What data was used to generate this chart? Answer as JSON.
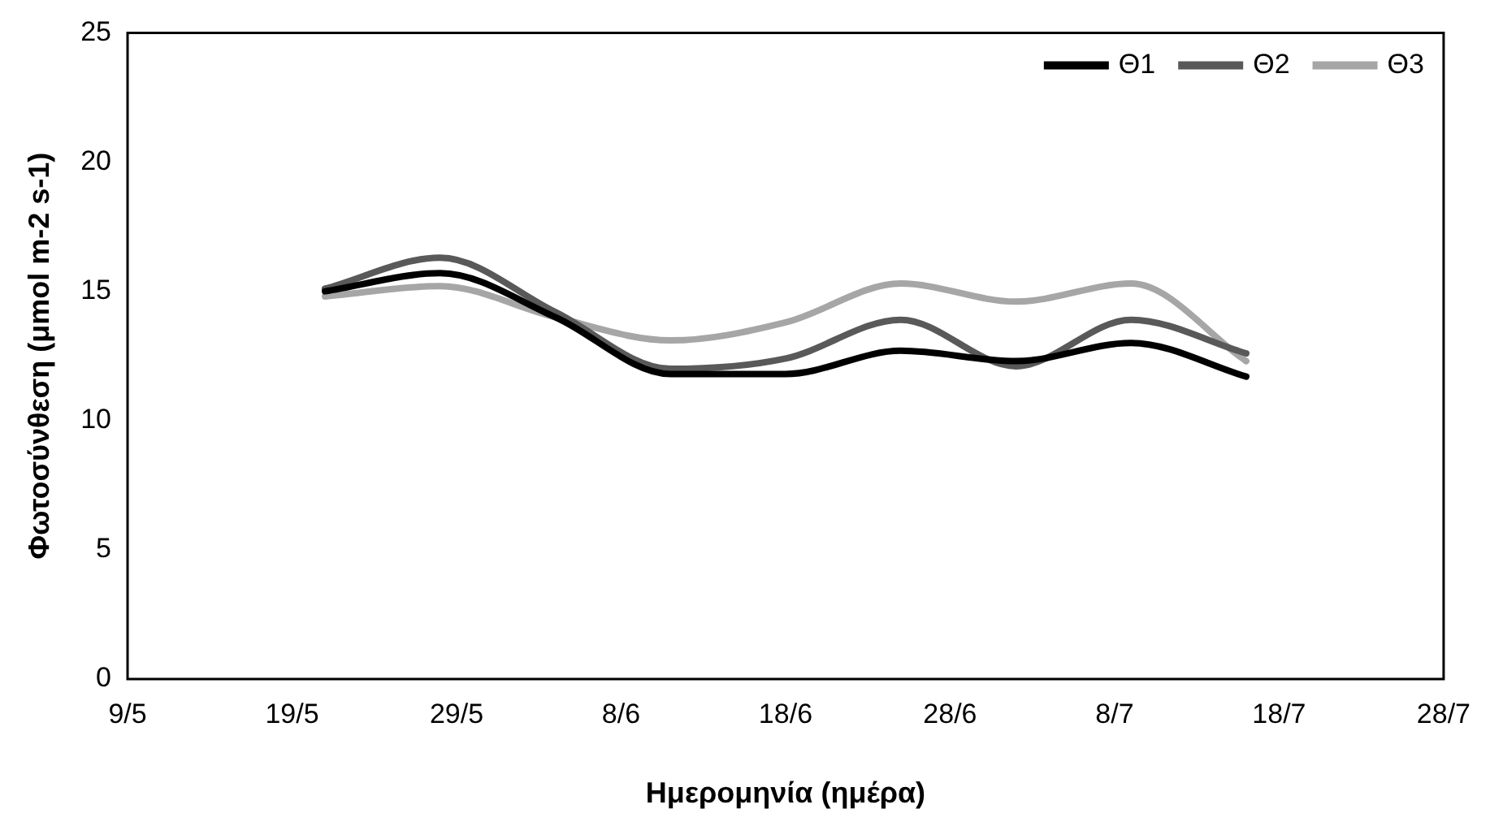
{
  "chart_data": {
    "type": "line",
    "xlabel": "Ημερομηνία (ημέρα)",
    "ylabel": "Φωτοσύνθεση (μmol m-2 s-1)",
    "x": [
      "--05-21",
      "--05-28",
      "--06-04",
      "--06-11",
      "--06-18",
      "--06-25",
      "--07-02",
      "--07-09",
      "--07-16"
    ],
    "series": [
      {
        "name": "Θ1",
        "color": "#000000",
        "values": [
          15.0,
          15.7,
          14.0,
          11.8,
          11.8,
          12.7,
          12.3,
          13.0,
          11.7
        ]
      },
      {
        "name": "Θ2",
        "color": "#595959",
        "values": [
          15.1,
          16.3,
          14.2,
          12.0,
          12.4,
          13.9,
          12.1,
          13.9,
          12.6
        ]
      },
      {
        "name": "Θ3",
        "color": "#a6a6a6",
        "values": [
          14.8,
          15.2,
          14.0,
          13.1,
          13.8,
          15.3,
          14.6,
          15.3,
          12.3
        ]
      }
    ],
    "xlim": [
      "--05-09",
      "--07-28"
    ],
    "xticks": [
      {
        "value": "--05-09",
        "label": "9/5"
      },
      {
        "value": "--05-19",
        "label": "19/5"
      },
      {
        "value": "--05-29",
        "label": "29/5"
      },
      {
        "value": "--06-08",
        "label": "8/6"
      },
      {
        "value": "--06-18",
        "label": "18/6"
      },
      {
        "value": "--06-28",
        "label": "28/6"
      },
      {
        "value": "--07-08",
        "label": "8/7"
      },
      {
        "value": "--07-18",
        "label": "18/7"
      },
      {
        "value": "--07-28",
        "label": "28/7"
      }
    ],
    "ylim": [
      0,
      25
    ],
    "yticks": [
      0,
      5,
      10,
      15,
      20,
      25
    ],
    "grid": false,
    "legend": "top right",
    "marker": "none",
    "line_style": "solid"
  }
}
